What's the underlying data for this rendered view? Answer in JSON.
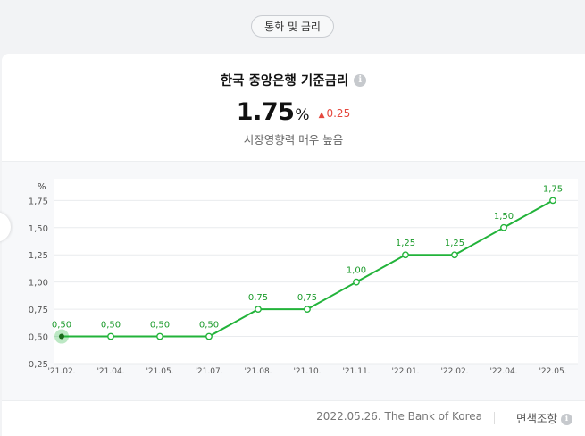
{
  "category_tag": "통화 및 금리",
  "rate": {
    "title": "한국 중앙은행 기준금리",
    "value": "1.75",
    "unit": "%",
    "change": "0.25",
    "impact": "시장영향력 매우 높음"
  },
  "footer": {
    "source": "2022.05.26. The Bank of Korea",
    "disclaimer": "면책조항"
  },
  "colors": {
    "line": "#22b33a",
    "label": "#1a9a2a",
    "up": "#e5483e"
  },
  "chart_data": {
    "type": "line",
    "ylabel": "%",
    "ylim": [
      0.25,
      1.95
    ],
    "y_ticks": [
      "0,25",
      "0,50",
      "0,75",
      "1,00",
      "1,25",
      "1,50",
      "1,75"
    ],
    "categories": [
      "'21.02.",
      "'21.04.",
      "'21.05.",
      "'21.07.",
      "'21.08.",
      "'21.10.",
      "'21.11.",
      "'22.01.",
      "'22.02.",
      "'22.04.",
      "'22.05."
    ],
    "values": [
      0.5,
      0.5,
      0.5,
      0.5,
      0.75,
      0.75,
      1.0,
      1.25,
      1.25,
      1.5,
      1.75
    ],
    "data_labels": [
      "0,50",
      "0,50",
      "0,50",
      "0,50",
      "0,75",
      "0,75",
      "1,00",
      "1,25",
      "1,25",
      "1,50",
      "1,75"
    ],
    "highlight_index": 0,
    "grid": true
  }
}
